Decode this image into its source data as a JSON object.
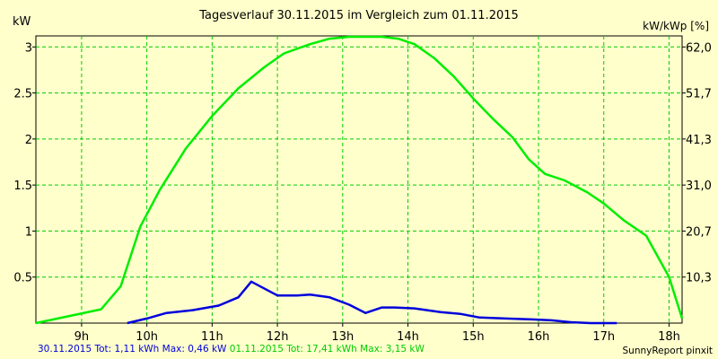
{
  "chart_data": {
    "type": "line",
    "title": "Tagesverlauf 30.11.2015 im Vergleich zum 01.11.2015",
    "ylabel_left": "kW",
    "ylabel_right": "kW/kWp [%]",
    "x_ticks": [
      "9h",
      "10h",
      "11h",
      "12h",
      "13h",
      "14h",
      "15h",
      "16h",
      "17h",
      "18h"
    ],
    "x_tick_values": [
      9,
      10,
      11,
      12,
      13,
      14,
      15,
      16,
      17,
      18
    ],
    "xlim": [
      8.3,
      18.2
    ],
    "y_ticks": [
      "0.5",
      "1",
      "1.5",
      "2",
      "2.5",
      "3"
    ],
    "y_tick_values": [
      0.5,
      1,
      1.5,
      2,
      2.5,
      3
    ],
    "y_right_ticks": [
      "10,3",
      "20,7",
      "31,0",
      "41,3",
      "51,7",
      "62,0"
    ],
    "ylim": [
      0,
      3.12
    ],
    "grid": true,
    "series": [
      {
        "name": "01.11.2015",
        "color": "#00ee00",
        "x": [
          8.3,
          9.3,
          9.6,
          9.9,
          10.2,
          10.6,
          11.0,
          11.4,
          11.8,
          12.1,
          12.5,
          12.8,
          13.1,
          13.4,
          13.6,
          13.85,
          14.1,
          14.4,
          14.7,
          15.0,
          15.3,
          15.6,
          15.85,
          16.1,
          16.4,
          16.75,
          17.0,
          17.3,
          17.65,
          18.0,
          18.2
        ],
        "y": [
          0.0,
          0.15,
          0.4,
          1.05,
          1.45,
          1.9,
          2.25,
          2.55,
          2.78,
          2.93,
          3.03,
          3.09,
          3.11,
          3.11,
          3.11,
          3.09,
          3.03,
          2.88,
          2.68,
          2.44,
          2.22,
          2.02,
          1.78,
          1.62,
          1.55,
          1.42,
          1.3,
          1.12,
          0.95,
          0.5,
          0.05
        ]
      },
      {
        "name": "30.11.2015",
        "color": "#0000dd",
        "x": [
          9.7,
          10.0,
          10.3,
          10.7,
          11.1,
          11.4,
          11.6,
          12.0,
          12.3,
          12.5,
          12.8,
          13.1,
          13.35,
          13.6,
          13.8,
          14.1,
          14.5,
          14.8,
          15.1,
          15.5,
          15.9,
          16.2,
          16.5,
          16.8,
          17.2
        ],
        "y": [
          0.0,
          0.05,
          0.11,
          0.14,
          0.19,
          0.28,
          0.45,
          0.3,
          0.3,
          0.31,
          0.28,
          0.2,
          0.11,
          0.17,
          0.17,
          0.16,
          0.12,
          0.1,
          0.06,
          0.05,
          0.04,
          0.03,
          0.01,
          0.0,
          0.0
        ]
      }
    ]
  },
  "legend": {
    "blue_text": "30.11.2015 Tot: 1,11 kWh Max: 0,46 kW",
    "green_text": "01.11.2015 Tot: 17,41 kWh Max: 3,15 kW"
  },
  "credit": "SunnyReport pinxit"
}
